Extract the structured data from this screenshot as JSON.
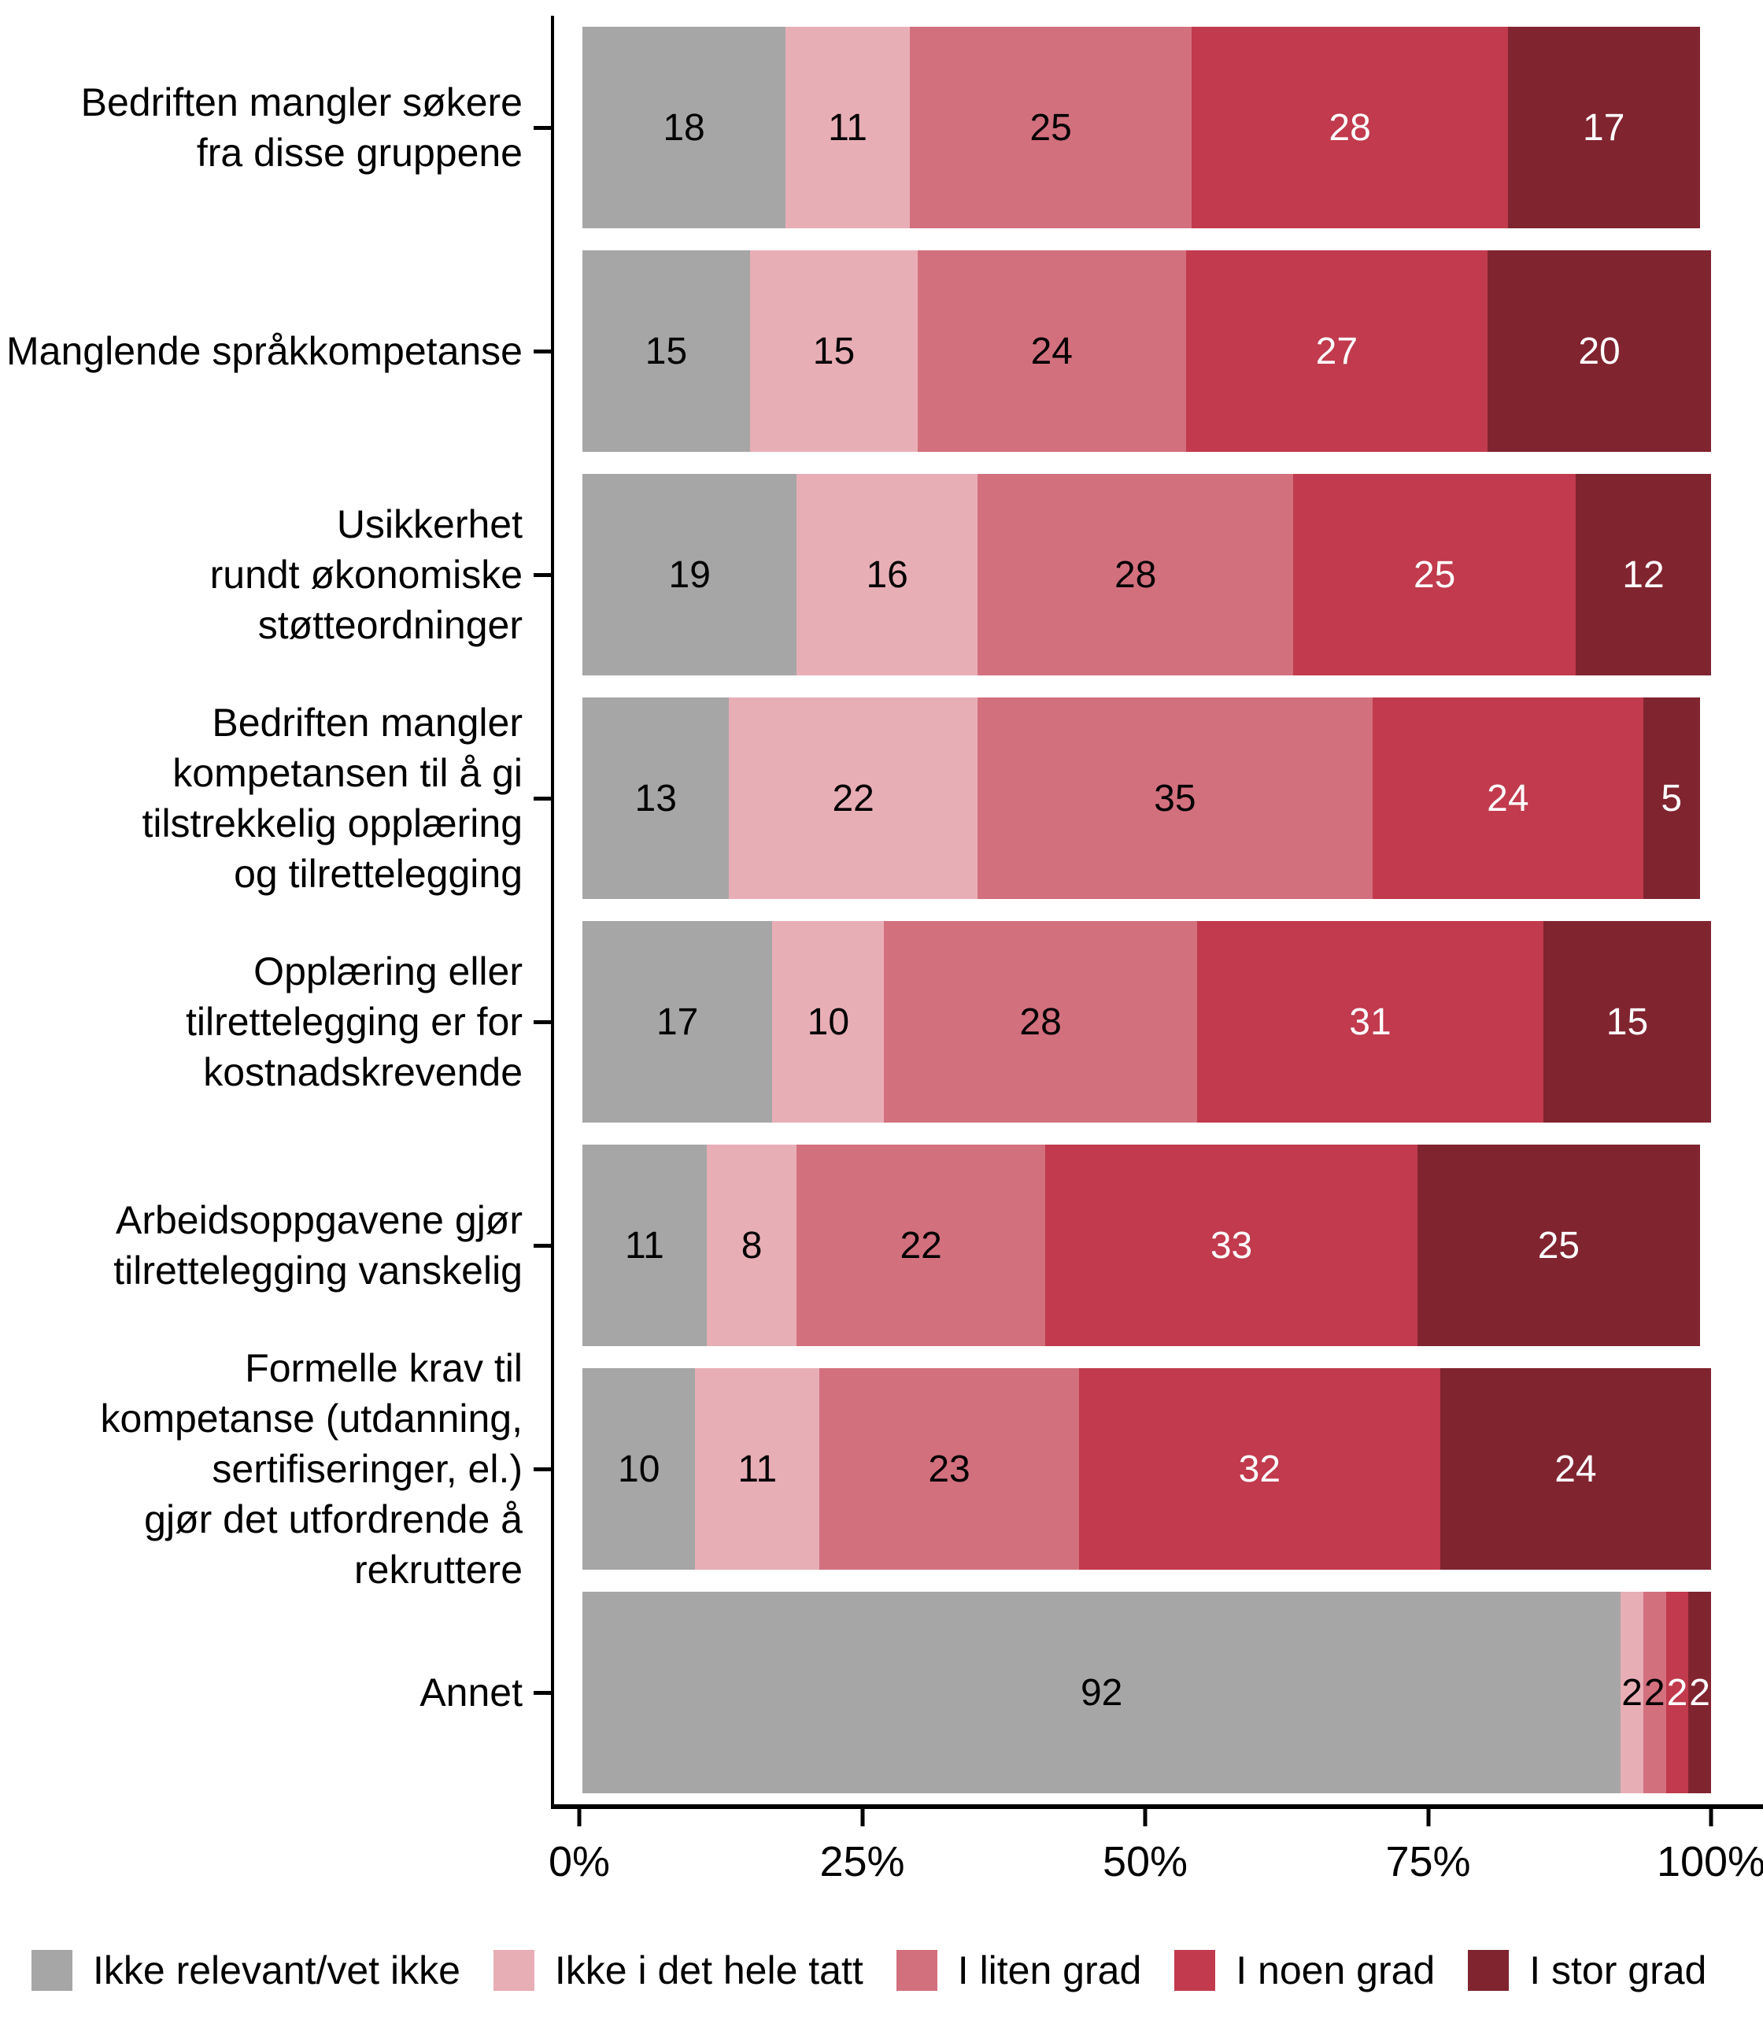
{
  "chart_data": {
    "type": "bar",
    "orientation": "horizontal",
    "stacked": true,
    "unit": "percent",
    "categories": [
      "Bedriften mangler søkere\nfra disse gruppene",
      "Manglende språkkompetanse",
      "Usikkerhet\nrundt økonomiske\nstøtteordninger",
      "Bedriften mangler\nkompetansen til å gi\ntilstrekkelig opplæring\nog tilrettelegging",
      "Opplæring eller\ntilrettelegging er for\nkostnadskrevende",
      "Arbeidsoppgavene gjør\ntilrettelegging vanskelig",
      "Formelle krav til\nkompetanse (utdanning,\nsertifiseringer, el.)\ngjør det utfordrende å\nrekruttere",
      "Annet"
    ],
    "series": [
      {
        "name": "Ikke relevant/vet ikke",
        "color": "#a6a6a6",
        "label_color": "#000000",
        "values": [
          18,
          15,
          19,
          13,
          17,
          11,
          10,
          92
        ]
      },
      {
        "name": "Ikke i det hele tatt",
        "color": "#e8aeb6",
        "label_color": "#000000",
        "values": [
          11,
          15,
          16,
          22,
          10,
          8,
          11,
          2
        ]
      },
      {
        "name": "I liten grad",
        "color": "#d3707e",
        "label_color": "#000000",
        "values": [
          25,
          24,
          28,
          35,
          28,
          22,
          23,
          2
        ]
      },
      {
        "name": "I noen grad",
        "color": "#c13a4d",
        "label_color": "#ffffff",
        "values": [
          28,
          27,
          25,
          24,
          31,
          33,
          32,
          2
        ]
      },
      {
        "name": "I stor grad",
        "color": "#802430",
        "label_color": "#ffffff",
        "values": [
          17,
          20,
          12,
          5,
          15,
          25,
          24,
          2
        ]
      }
    ],
    "x_axis": {
      "tick_labels": [
        "0%",
        "25%",
        "50%",
        "75%",
        "100%"
      ],
      "range": [
        0,
        100
      ],
      "grid": false
    },
    "legend_position": "bottom"
  }
}
